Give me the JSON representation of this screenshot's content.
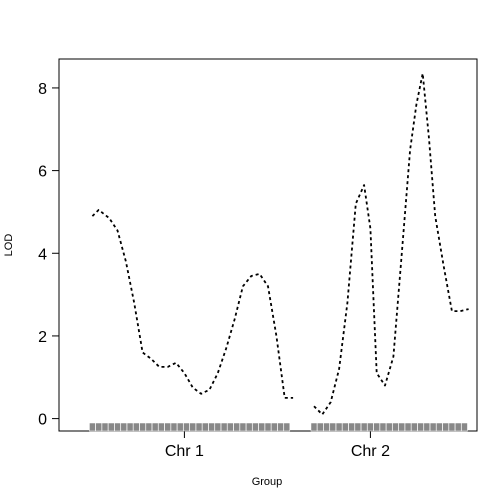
{
  "chart_data": {
    "type": "line",
    "xlabel": "Group",
    "ylabel": "LOD",
    "ylim": [
      -0.3,
      8.7
    ],
    "yticks": [
      0,
      2,
      4,
      6,
      8
    ],
    "xlim": [
      0,
      100
    ],
    "grid": false,
    "legend": "none",
    "line_style": "dotted",
    "line_color": "#000000",
    "rug_color": "#888888",
    "groups": [
      {
        "label": "Chr 1",
        "tick_position": 30,
        "x": [
          8,
          9.5,
          12,
          14,
          16,
          18,
          20,
          22,
          24,
          26,
          28,
          30,
          32,
          34,
          36,
          38,
          40,
          42,
          44,
          46,
          48,
          50,
          52,
          54,
          56
        ],
        "y": [
          4.9,
          5.05,
          4.85,
          4.55,
          3.8,
          2.8,
          1.6,
          1.45,
          1.25,
          1.25,
          1.35,
          1.1,
          0.75,
          0.6,
          0.7,
          1.1,
          1.7,
          2.4,
          3.2,
          3.45,
          3.5,
          3.2,
          2.0,
          0.5,
          0.5
        ],
        "markers": [
          8,
          9.5,
          11,
          12.5,
          14,
          15.5,
          17,
          18.5,
          20,
          21.5,
          23,
          24.5,
          26,
          27.5,
          29,
          30.5,
          32,
          33.5,
          35,
          36.5,
          38,
          39.5,
          41,
          42.5,
          44,
          45.5,
          47,
          48.5,
          50,
          51.5,
          53,
          54.5
        ]
      },
      {
        "label": "Chr 2",
        "tick_position": 74.5,
        "x": [
          61,
          63,
          65,
          67,
          69,
          71,
          73,
          74.5,
          76,
          78,
          80,
          82,
          84,
          85.5,
          87,
          88.5,
          90,
          92,
          94,
          96,
          98
        ],
        "y": [
          0.3,
          0.1,
          0.4,
          1.2,
          2.8,
          5.2,
          5.65,
          4.6,
          1.1,
          0.8,
          1.5,
          4.0,
          6.5,
          7.6,
          8.35,
          6.8,
          4.9,
          3.7,
          2.6,
          2.6,
          2.65
        ],
        "markers": [
          61,
          62.5,
          64,
          65.5,
          67,
          68.5,
          70,
          71.5,
          73,
          74.5,
          76,
          77.5,
          79,
          80.5,
          82,
          83.5,
          85,
          86.5,
          88,
          89.5,
          91,
          92.5,
          94,
          95.5,
          97
        ]
      }
    ]
  }
}
